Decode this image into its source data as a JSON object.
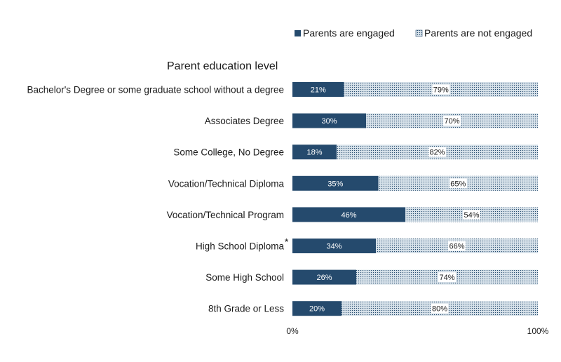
{
  "chart_data": {
    "type": "bar",
    "orientation": "horizontal",
    "stacked": true,
    "heading": "Parent education level",
    "categories": [
      "Bachelor's Degree or some graduate school without a degree",
      "Associates Degree",
      "Some College, No Degree",
      "Vocation/Technical Diploma",
      "Vocation/Technical Program",
      "High School Diploma",
      "Some High School",
      "8th Grade or Less"
    ],
    "category_marks": [
      "",
      "",
      "",
      "",
      "",
      "*",
      "",
      ""
    ],
    "series": [
      {
        "name": "Parents are engaged",
        "values": [
          21,
          30,
          18,
          35,
          46,
          34,
          26,
          20
        ],
        "color": "#254a6d"
      },
      {
        "name": "Parents are not engaged",
        "values": [
          79,
          70,
          82,
          65,
          54,
          66,
          74,
          80
        ],
        "color": "#d7e2ea",
        "pattern": "dotted"
      }
    ],
    "value_suffix": "%",
    "xlim": [
      0,
      100
    ],
    "x_ticks": [
      "0%",
      "100%"
    ],
    "legend_position": "top-right",
    "grid": false
  }
}
